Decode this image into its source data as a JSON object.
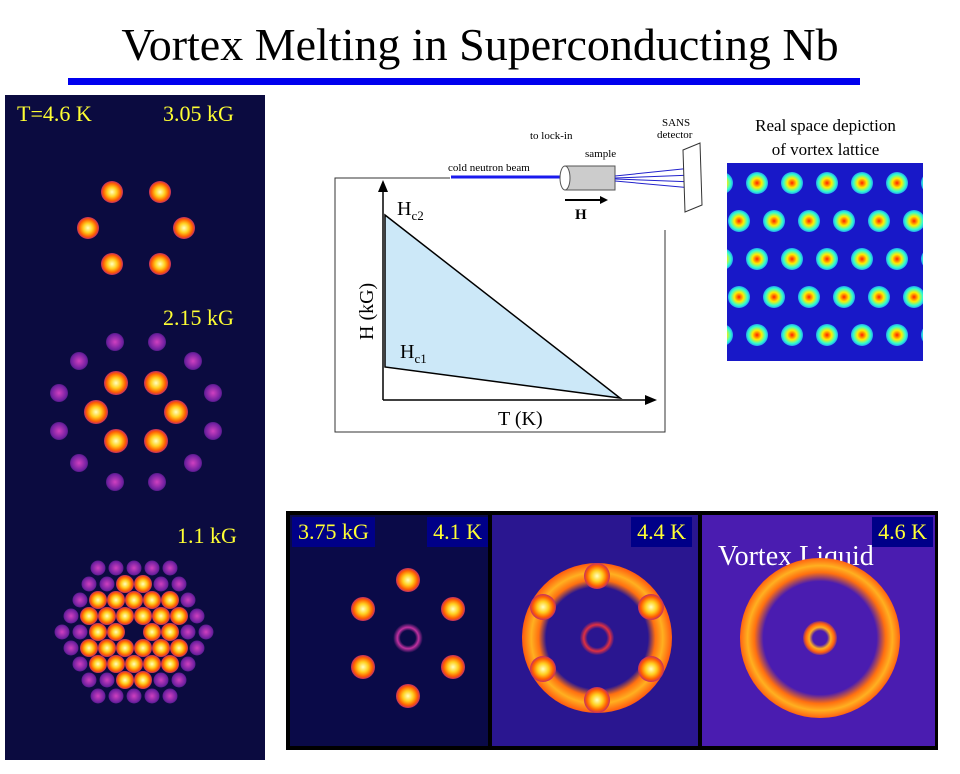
{
  "title": "Vortex Melting in Superconducting Nb",
  "left_panel": {
    "temperature": "T=4.6 K",
    "fields": [
      "3.05 kG",
      "2.15 kG",
      "1.1 kG"
    ]
  },
  "setup": {
    "to_lock_in": "to lock-in",
    "sample": "sample",
    "beam": "cold neutron beam",
    "detector_line1": "SANS",
    "detector_line2": "detector",
    "field_label": "H"
  },
  "phase_diagram": {
    "ylabel": "H (kG)",
    "xlabel": "T (K)",
    "hc2": "H",
    "hc2_sub": "c2",
    "hc1": "H",
    "hc1_sub": "c1",
    "fill_color": "#cce8f8"
  },
  "real_space": {
    "line1": "Real space depiction",
    "line2": "of vortex lattice"
  },
  "bottom_panels": {
    "field": "3.75 kG",
    "temps": [
      "4.1 K",
      "4.4 K",
      "4.6 K"
    ],
    "liquid_label": "Vortex Liquid"
  },
  "colors": {
    "accent": "#0000ee",
    "label": "#ffff33",
    "tag_bg": "#000088"
  }
}
